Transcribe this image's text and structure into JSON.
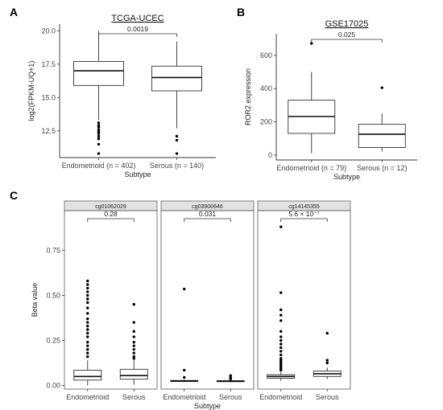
{
  "panel_labels": [
    "A",
    "B",
    "C"
  ],
  "chart_data": [
    {
      "type": "box",
      "panel": "A",
      "title": "TCGA-UCEC",
      "ylabel": "log2(FPKM-UQ+1)",
      "xlabel": "Subtype",
      "ylim": [
        10.5,
        20.5
      ],
      "yticks": [
        "12.5",
        "15.0",
        "17.5",
        "20.0"
      ],
      "categories": [
        "Endometrioid (n = 402)",
        "Serous (n = 140)"
      ],
      "boxes": [
        {
          "q1": 15.9,
          "median": 17.0,
          "q3": 17.7,
          "whisker_low": 13.3,
          "whisker_high": 20.0,
          "outliers": [
            13.1,
            12.9,
            12.8,
            12.6,
            12.45,
            12.3,
            12.1,
            11.9,
            11.5,
            10.8
          ]
        },
        {
          "q1": 15.5,
          "median": 16.5,
          "q3": 17.35,
          "whisker_low": 12.7,
          "whisker_high": 19.2,
          "outliers": [
            12.1,
            11.8,
            10.8
          ]
        }
      ],
      "comparison": {
        "p_label": "0.0019"
      }
    },
    {
      "type": "box",
      "panel": "B",
      "title": "GSE17025",
      "ylabel": "ROR2 expression",
      "xlabel": "Subtype",
      "ylim": [
        -30,
        730
      ],
      "yticks": [
        "0",
        "200",
        "400",
        "600"
      ],
      "categories": [
        "Endometrioid (n = 79)",
        "Serous (n = 12)"
      ],
      "boxes": [
        {
          "q1": 130,
          "median": 232,
          "q3": 330,
          "whisker_low": 10,
          "whisker_high": 500,
          "outliers": [
            672
          ]
        },
        {
          "q1": 45,
          "median": 125,
          "q3": 185,
          "whisker_low": 20,
          "whisker_high": 250,
          "outliers": [
            405
          ]
        }
      ],
      "comparison": {
        "p_label": "0.025"
      }
    },
    {
      "type": "box",
      "panel": "C",
      "ylabel": "Beta value",
      "xlabel": "Subtype",
      "ylim": [
        -0.02,
        0.97
      ],
      "yticks": [
        "0.00",
        "0.25",
        "0.50",
        "0.75"
      ],
      "facets": [
        {
          "strip": "cg01062029",
          "categories": [
            "Endometrioid",
            "Serous"
          ],
          "comparison": {
            "p_label": "0.28"
          },
          "boxes": [
            {
              "q1": 0.03,
              "median": 0.05,
              "q3": 0.085,
              "whisker_low": 0.0,
              "whisker_high": 0.14,
              "outliers": [
                0.58,
                0.56,
                0.54,
                0.52,
                0.5,
                0.48,
                0.46,
                0.43,
                0.4,
                0.37,
                0.35,
                0.33,
                0.31,
                0.29,
                0.27,
                0.24,
                0.22,
                0.2,
                0.18,
                0.16
              ]
            },
            {
              "q1": 0.035,
              "median": 0.055,
              "q3": 0.09,
              "whisker_low": 0.005,
              "whisker_high": 0.14,
              "outliers": [
                0.45,
                0.35,
                0.3,
                0.27,
                0.24,
                0.22,
                0.2,
                0.18,
                0.16,
                0.15
              ]
            }
          ]
        },
        {
          "strip": "cg03900646",
          "categories": [
            "Endometrioid",
            "Serous"
          ],
          "comparison": {
            "p_label": "0.031"
          },
          "boxes": [
            {
              "q1": 0.022,
              "median": 0.025,
              "q3": 0.028,
              "whisker_low": 0.018,
              "whisker_high": 0.033,
              "outliers": [
                0.535,
                0.085,
                0.045
              ]
            },
            {
              "q1": 0.021,
              "median": 0.024,
              "q3": 0.027,
              "whisker_low": 0.017,
              "whisker_high": 0.032,
              "outliers": [
                0.055,
                0.045,
                0.04,
                0.036
              ]
            }
          ]
        },
        {
          "strip": "cg14145355",
          "categories": [
            "Endometrioid",
            "Serous"
          ],
          "comparison": {
            "p_label": "5.6 × 10⁻⁷"
          },
          "boxes": [
            {
              "q1": 0.04,
              "median": 0.05,
              "q3": 0.06,
              "whisker_low": 0.025,
              "whisker_high": 0.075,
              "outliers": [
                0.88,
                0.515,
                0.42,
                0.39,
                0.36,
                0.3,
                0.27,
                0.25,
                0.23,
                0.21,
                0.19,
                0.17,
                0.15,
                0.14,
                0.13,
                0.12,
                0.11,
                0.1,
                0.09,
                0.085
              ]
            },
            {
              "q1": 0.05,
              "median": 0.065,
              "q3": 0.08,
              "whisker_low": 0.035,
              "whisker_high": 0.1,
              "outliers": [
                0.29,
                0.14,
                0.125
              ]
            }
          ]
        }
      ]
    }
  ]
}
